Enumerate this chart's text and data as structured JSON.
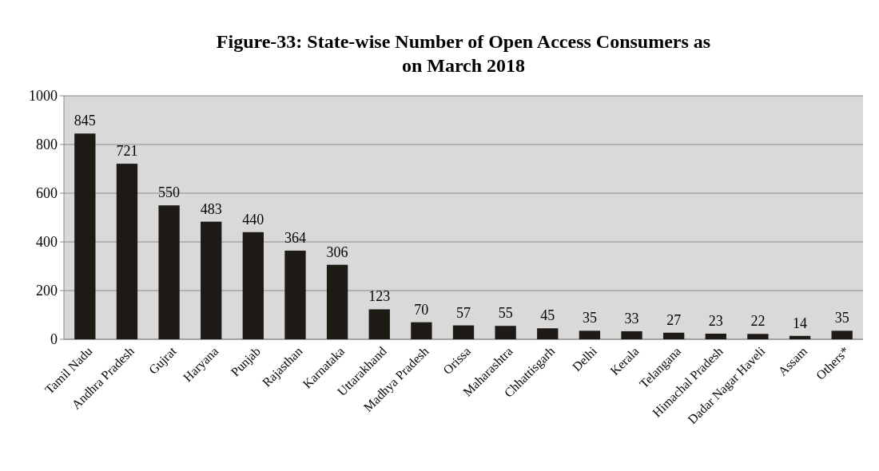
{
  "chart_data": {
    "type": "bar",
    "title": "Figure-33: State-wise Number of Open Access Consumers as on March 2018",
    "categories": [
      "Tamil Nadu",
      "Andhra Pradesh",
      "Gujrat",
      "Haryana",
      "Punjab",
      "Rajasthan",
      "Karnataka",
      "Uttarakhand",
      "Madhya Pradesh",
      "Orissa",
      "Maharashtra",
      "Chhattisgarh",
      "Delhi",
      "Kerala",
      "Telangana",
      "Himachal Pradesh",
      "Dadar Nagar Haveli",
      "Assam",
      "Others*"
    ],
    "values": [
      845,
      721,
      550,
      483,
      440,
      364,
      306,
      123,
      70,
      57,
      55,
      45,
      35,
      33,
      27,
      23,
      22,
      14,
      35
    ],
    "color": "#1e1a16",
    "ylim": [
      0,
      1000
    ],
    "yticks": [
      0,
      200,
      400,
      600,
      800,
      1000
    ],
    "grid": "y",
    "data_labels": true
  }
}
